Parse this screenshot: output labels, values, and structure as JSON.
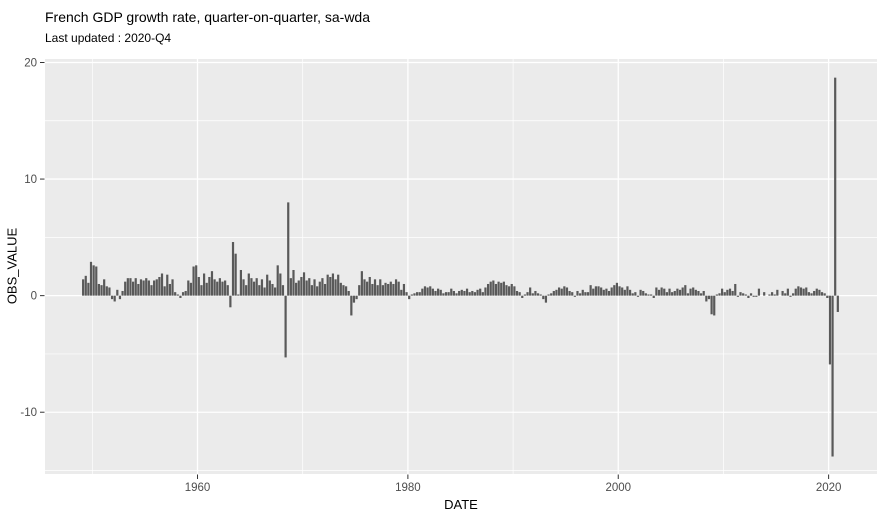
{
  "chart_data": {
    "type": "bar",
    "title": "French GDP growth rate, quarter-on-quarter, sa-wda",
    "subtitle": "Last updated : 2020-Q4",
    "xlabel": "DATE",
    "ylabel": "OBS_VALUE",
    "series_name": "OBS_VALUE (quarterly GDP growth, %)",
    "frequency": "quarterly",
    "first_quarter": "1949-Q1",
    "last_quarter": "2020-Q4",
    "start_year": 1949,
    "x_ticks": [
      1960,
      1980,
      2000,
      2020
    ],
    "x_minor_ticks": [
      1950,
      1970,
      1990,
      2010
    ],
    "y_ticks": [
      20,
      10,
      0,
      -10
    ],
    "y_minor_ticks": [
      15,
      5,
      -5,
      -15
    ],
    "xlim": [
      1945.5,
      2024.6
    ],
    "ylim": [
      -15.3,
      20.3
    ],
    "grid": true,
    "legend": "none",
    "colors": {
      "bar": "#595959",
      "panel_bg": "#ebebeb",
      "grid": "#ffffff",
      "tick_label": "#4d4d4d",
      "tick_mark": "#333333",
      "title_text": "#000000"
    },
    "values": [
      1.4,
      1.7,
      1.1,
      2.9,
      2.6,
      2.5,
      1.0,
      0.9,
      1.4,
      0.8,
      0.7,
      -0.3,
      -0.5,
      0.5,
      -0.3,
      0.4,
      1.2,
      1.5,
      1.5,
      1.2,
      1.5,
      1.0,
      1.4,
      1.3,
      1.5,
      1.3,
      0.9,
      1.3,
      1.4,
      1.6,
      1.9,
      0.8,
      1.8,
      1.0,
      1.4,
      0.3,
      0.1,
      -0.2,
      0.3,
      0.4,
      1.3,
      1.1,
      2.5,
      2.6,
      1.6,
      0.9,
      1.9,
      1.1,
      1.6,
      2.1,
      1.4,
      1.2,
      1.5,
      1.2,
      1.3,
      0.9,
      -1.0,
      4.6,
      3.6,
      0.1,
      2.2,
      1.4,
      0.9,
      1.9,
      1.5,
      1.2,
      1.5,
      0.9,
      1.4,
      0.7,
      1.8,
      1.3,
      1.0,
      0.7,
      2.6,
      1.9,
      0.9,
      -5.3,
      8.0,
      1.5,
      2.2,
      1.1,
      1.3,
      1.6,
      2.0,
      1.3,
      1.5,
      0.9,
      1.4,
      0.8,
      1.2,
      1.5,
      1.0,
      1.8,
      1.6,
      1.9,
      1.4,
      1.8,
      1.1,
      0.9,
      0.8,
      0.4,
      -1.7,
      -0.6,
      -0.3,
      0.9,
      2.1,
      1.4,
      1.2,
      1.6,
      1.0,
      1.4,
      0.9,
      1.4,
      0.9,
      1.1,
      1.0,
      1.2,
      1.0,
      1.4,
      1.2,
      0.5,
      1.0,
      0.3,
      -0.3,
      0.1,
      0.2,
      0.3,
      0.3,
      0.6,
      0.8,
      0.7,
      0.8,
      0.6,
      0.4,
      0.6,
      0.5,
      0.2,
      0.3,
      0.3,
      0.6,
      0.4,
      0.2,
      0.4,
      0.5,
      0.4,
      0.6,
      0.3,
      0.4,
      0.3,
      0.5,
      0.6,
      0.3,
      0.7,
      1.0,
      1.2,
      1.3,
      1.0,
      1.2,
      1.1,
      1.2,
      0.9,
      0.8,
      1.0,
      0.8,
      0.4,
      0.3,
      -0.2,
      0.1,
      0.3,
      0.7,
      0.2,
      0.4,
      0.2,
      0.1,
      -0.3,
      -0.6,
      0.1,
      0.2,
      0.4,
      0.5,
      0.7,
      0.6,
      0.8,
      0.7,
      0.4,
      0.3,
      -0.1,
      0.4,
      0.2,
      0.5,
      0.3,
      0.3,
      0.9,
      0.6,
      0.8,
      0.8,
      0.7,
      0.5,
      0.6,
      0.4,
      0.7,
      0.9,
      1.1,
      0.8,
      0.7,
      0.5,
      0.8,
      0.5,
      0.2,
      0.3,
      -0.1,
      0.5,
      0.4,
      0.2,
      0.1,
      0.1,
      -0.2,
      0.7,
      0.5,
      0.7,
      0.6,
      0.3,
      0.6,
      0.3,
      0.4,
      0.6,
      0.5,
      0.7,
      0.9,
      0.2,
      0.6,
      0.7,
      0.5,
      0.4,
      0.2,
      0.4,
      -0.5,
      -0.3,
      -1.6,
      -1.7,
      0.1,
      0.2,
      0.6,
      0.3,
      0.5,
      0.6,
      0.4,
      1.0,
      -0.1,
      0.3,
      0.2,
      0.1,
      -0.2,
      0.2,
      -0.1,
      -0.1,
      0.6,
      0.0,
      0.3,
      0.0,
      0.1,
      0.3,
      0.1,
      0.5,
      0.0,
      0.4,
      0.2,
      0.6,
      -0.1,
      0.2,
      0.6,
      0.8,
      0.7,
      0.6,
      0.7,
      0.3,
      0.2,
      0.4,
      0.6,
      0.5,
      0.3,
      0.2,
      -0.2,
      -5.9,
      -13.8,
      18.7,
      -1.4
    ]
  }
}
